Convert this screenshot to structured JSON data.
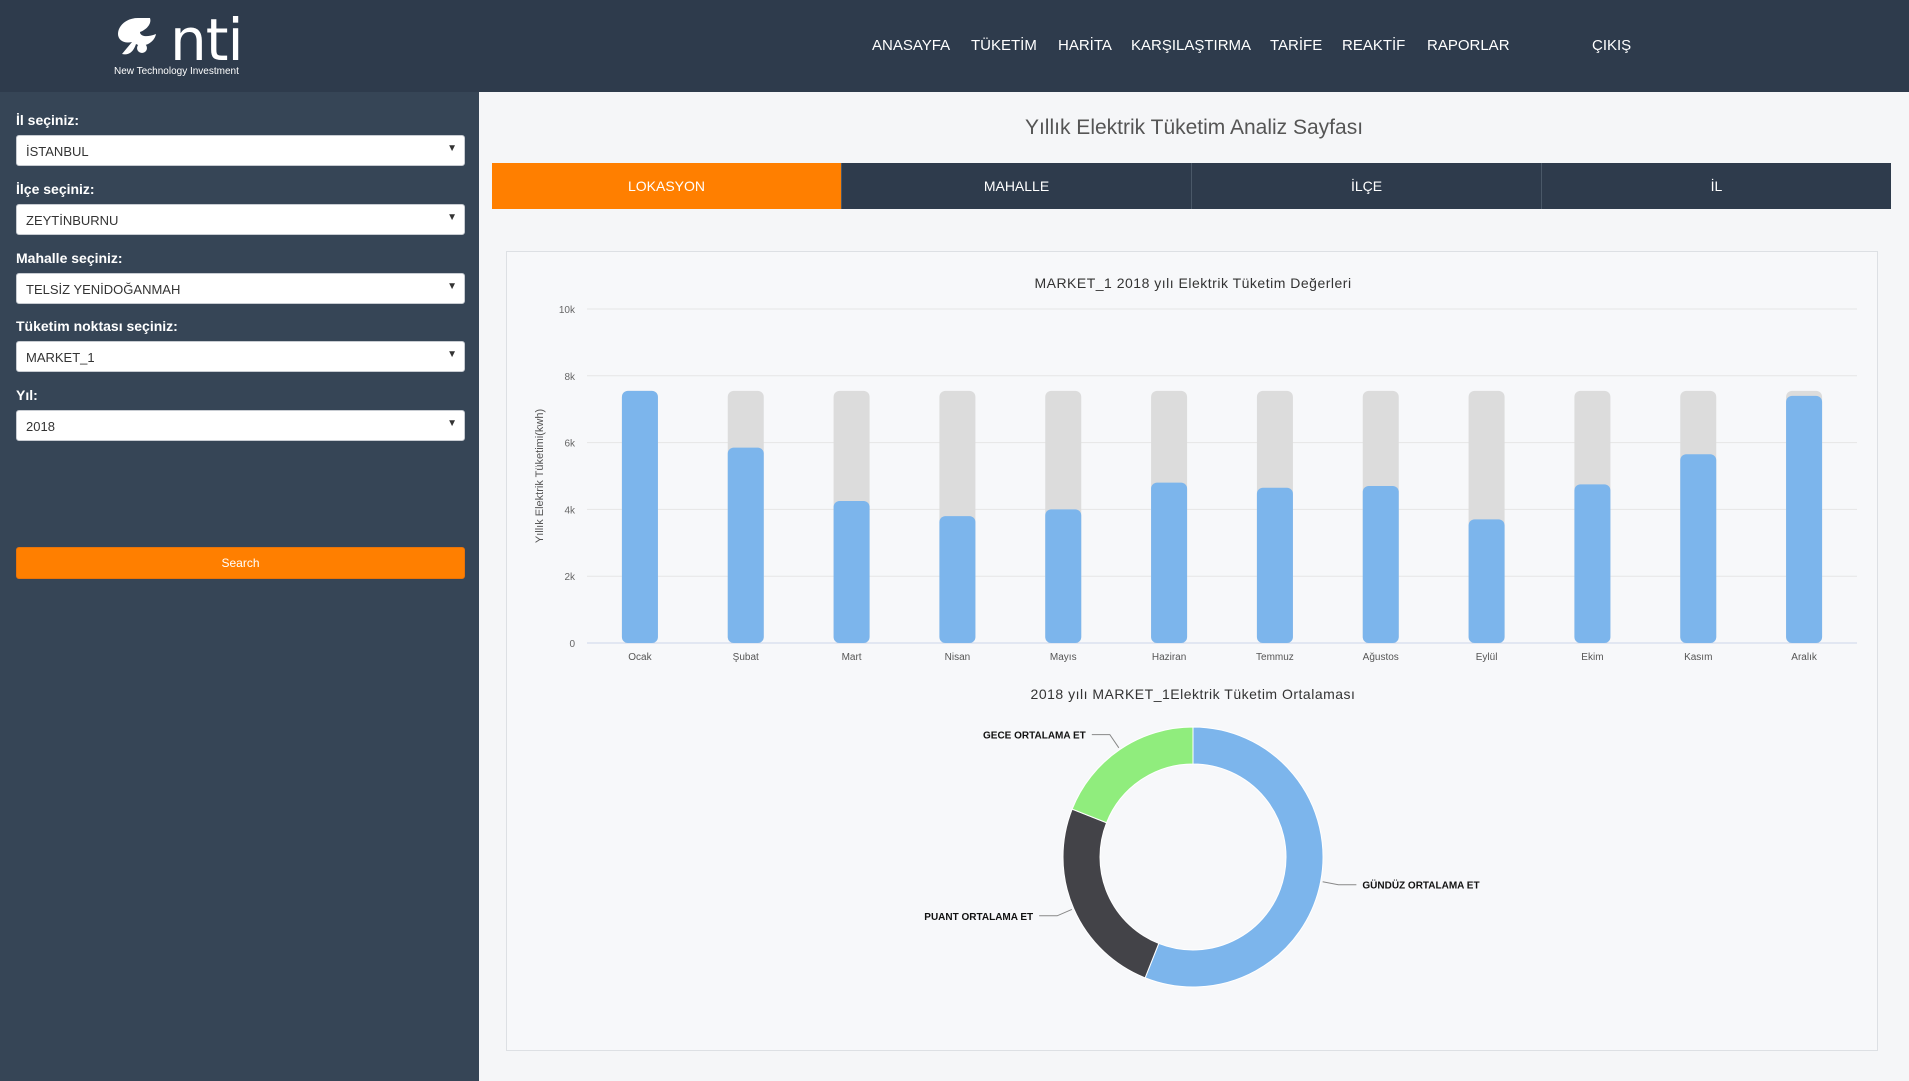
{
  "header": {
    "logo_text": "nti",
    "logo_subtitle": "New Technology Investment",
    "nav": [
      "ANASAYFA",
      "TÜKETİM",
      "HARİTA",
      "KARŞILAŞTIRMA",
      "TARİFE",
      "REAKTİF",
      "RAPORLAR",
      "ÇIKIŞ"
    ]
  },
  "sidebar": {
    "fields": [
      {
        "label": "İl seçiniz:",
        "value": "İSTANBUL"
      },
      {
        "label": "İlçe seçiniz:",
        "value": "ZEYTİNBURNU"
      },
      {
        "label": "Mahalle seçiniz:",
        "value": "TELSİZ YENİDOĞANMAH"
      },
      {
        "label": "Tüketim noktası seçiniz:",
        "value": "MARKET_1"
      },
      {
        "label": "Yıl:",
        "value": "2018"
      }
    ],
    "search_label": "Search"
  },
  "main": {
    "title": "Yıllık Elektrik Tüketim Analiz Sayfası",
    "tabs": [
      "LOKASYON",
      "MAHALLE",
      "İLÇE",
      "İL"
    ],
    "active_tab": 0
  },
  "colors": {
    "accent": "#ff7f00",
    "bar": "#7cb5ec",
    "bar_bg": "#dcdcdc",
    "gece": "#90ed7d",
    "puant": "#434348",
    "gunduz": "#7cb5ec"
  },
  "chart_data": [
    {
      "type": "bar",
      "title": "MARKET_1 2018 yılı Elektrik Tüketim Değerleri",
      "ylabel": "Yıllık Elektrik Tüketimi(kwh)",
      "categories": [
        "Ocak",
        "Şubat",
        "Mart",
        "Nisan",
        "Mayıs",
        "Haziran",
        "Temmuz",
        "Ağustos",
        "Eylül",
        "Ekim",
        "Kasım",
        "Aralık"
      ],
      "values": [
        7550,
        5850,
        4250,
        3800,
        4000,
        4800,
        4650,
        4700,
        3700,
        4750,
        5650,
        7400
      ],
      "background_value": 7550,
      "ylim": [
        0,
        10000
      ],
      "yticks": [
        "0",
        "2k",
        "4k",
        "6k",
        "8k",
        "10k"
      ]
    },
    {
      "type": "pie",
      "title": "2018 yılı MARKET_1Elektrik Tüketim Ortalaması",
      "series": [
        {
          "name": "GÜNDÜZ ORTALAMA ET",
          "value": 56
        },
        {
          "name": "PUANT ORTALAMA ET",
          "value": 25
        },
        {
          "name": "GECE ORTALAMA ET",
          "value": 19
        }
      ]
    }
  ]
}
